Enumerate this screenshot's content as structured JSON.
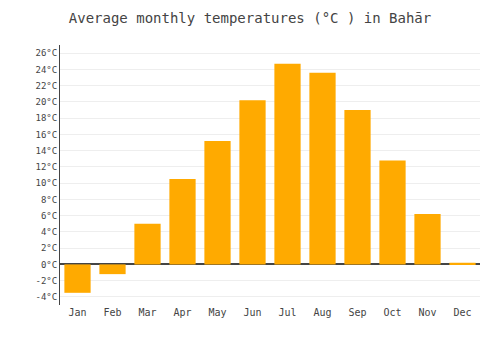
{
  "chart_data": {
    "type": "bar",
    "title": "Average monthly temperatures (°C ) in Bahār",
    "categories": [
      "Jan",
      "Feb",
      "Mar",
      "Apr",
      "May",
      "Jun",
      "Jul",
      "Aug",
      "Sep",
      "Oct",
      "Nov",
      "Dec"
    ],
    "values": [
      -3.5,
      -1.2,
      5.0,
      10.5,
      15.2,
      20.2,
      24.7,
      23.6,
      19.0,
      12.8,
      6.2,
      0.2
    ],
    "color": "#FFAA00",
    "ylim": [
      -5,
      27
    ],
    "yticks": [
      {
        "value": -4,
        "label": "-4°C"
      },
      {
        "value": -2,
        "label": "-2°C"
      },
      {
        "value": 0,
        "label": "0°C"
      },
      {
        "value": 2,
        "label": "2°C"
      },
      {
        "value": 4,
        "label": "4°C"
      },
      {
        "value": 6,
        "label": "6°C"
      },
      {
        "value": 8,
        "label": "8°C"
      },
      {
        "value": 10,
        "label": "10°C"
      },
      {
        "value": 12,
        "label": "12°C"
      },
      {
        "value": 14,
        "label": "14°C"
      },
      {
        "value": 16,
        "label": "16°C"
      },
      {
        "value": 18,
        "label": "18°C"
      },
      {
        "value": 20,
        "label": "20°C"
      },
      {
        "value": 22,
        "label": "22°C"
      },
      {
        "value": 24,
        "label": "24°C"
      },
      {
        "value": 26,
        "label": "26°C"
      }
    ],
    "grid": true
  }
}
